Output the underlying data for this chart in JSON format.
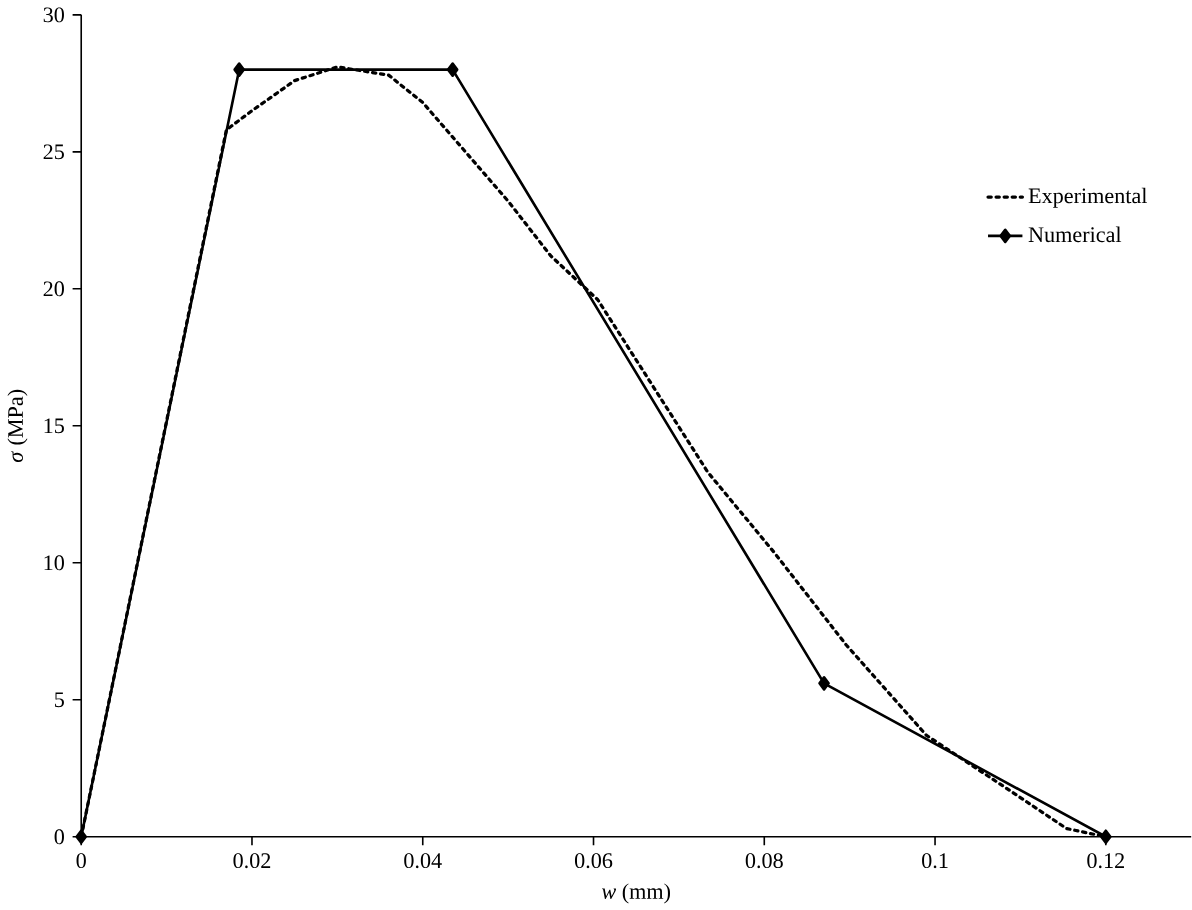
{
  "chart_data": {
    "type": "line",
    "xlabel": "*w* (mm)",
    "ylabel": "*σ* (MPa)",
    "xlim": [
      0,
      0.13
    ],
    "ylim": [
      0,
      30
    ],
    "xticks": [
      0,
      0.02,
      0.04,
      0.06,
      0.08,
      0.1,
      0.12
    ],
    "yticks": [
      0,
      5,
      10,
      15,
      20,
      25,
      30
    ],
    "grid": false,
    "legend": "top right",
    "series": [
      {
        "name": "Experimental",
        "color": "#000000",
        "line_style": "dotted",
        "marker": "none",
        "x": [
          0,
          0.017,
          0.02,
          0.025,
          0.03,
          0.036,
          0.04,
          0.045,
          0.05,
          0.055,
          0.0605,
          0.0734,
          0.0811,
          0.0896,
          0.099,
          0.1087,
          0.1154,
          0.12
        ],
        "values": [
          0,
          25.8,
          26.5,
          27.6,
          28.1,
          27.8,
          26.8,
          25,
          23.2,
          21.2,
          19.6,
          13.3,
          10.4,
          7.0,
          3.7,
          1.7,
          0.3,
          0
        ]
      },
      {
        "name": "Numerical",
        "color": "#000000",
        "line_style": "solid",
        "marker": "diamond",
        "x": [
          0,
          0.0185,
          0.0435,
          0.087,
          0.12
        ],
        "values": [
          0,
          28,
          28,
          5.6,
          0
        ]
      }
    ]
  }
}
